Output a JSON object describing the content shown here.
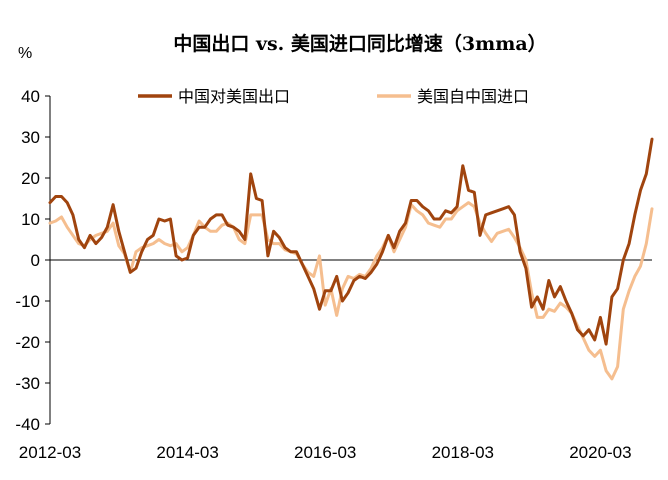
{
  "chart_data": {
    "type": "line",
    "title": "中国出口 vs. 美国进口同比增速（3mma）",
    "ylabel": "%",
    "xlabel": "",
    "ylim": [
      -40,
      40
    ],
    "yticks": [
      -40,
      -30,
      -20,
      -10,
      0,
      10,
      20,
      30,
      40
    ],
    "ytick_labels": [
      "-40",
      "-30",
      "-20",
      "-10",
      "0",
      "10",
      "20",
      "30",
      "40"
    ],
    "xticks": [
      "2012-03",
      "2014-03",
      "2016-03",
      "2018-03",
      "2020-03"
    ],
    "xtick_positions": [
      0,
      24,
      48,
      72,
      96
    ],
    "x_range": [
      0,
      105
    ],
    "legend_position": "top-center",
    "colors": {
      "china_exports": "#A0440E",
      "us_imports": "#F5BE8F",
      "axis": "#000000"
    },
    "series": [
      {
        "name": "中国对美国出口",
        "values": [
          14,
          15.5,
          15.5,
          14,
          11,
          5,
          3,
          6,
          4,
          5.5,
          8,
          13.5,
          7,
          2,
          -3,
          -2,
          2,
          5,
          6,
          10,
          9.5,
          10,
          1,
          0,
          0.5,
          6,
          8,
          8,
          10,
          11,
          11,
          8.5,
          8,
          7,
          5,
          21,
          15,
          14.5,
          1,
          7,
          5.5,
          3,
          2,
          2,
          -1,
          -4,
          -7,
          -12,
          -7.5,
          -7.5,
          -4,
          -10,
          -8,
          -5,
          -4,
          -4.5,
          -3,
          -1,
          2,
          6,
          3,
          7,
          9,
          14.5,
          14.5,
          13,
          12,
          10,
          10,
          12,
          11.5,
          13,
          23,
          17,
          16.5,
          6,
          11,
          11.5,
          12,
          12.5,
          13,
          11,
          2,
          -2,
          -11.5,
          -9,
          -12,
          -5,
          -9,
          -6.5,
          -10,
          -13,
          -17,
          -18.5,
          -17,
          -19.5,
          -14,
          -20.5,
          -9,
          -7,
          0,
          4,
          11,
          17,
          21,
          29.5
        ]
      },
      {
        "name": "美国自中国进口",
        "values": [
          9,
          9.5,
          10.5,
          8,
          6,
          4,
          3.5,
          5,
          6,
          6.5,
          7,
          9,
          3.5,
          1.5,
          -3,
          2,
          3,
          3.5,
          4,
          5,
          4,
          3.5,
          4,
          2,
          3,
          6,
          9.5,
          8,
          7,
          7,
          8.5,
          9,
          8,
          5,
          4,
          11,
          11,
          11,
          5,
          4,
          4,
          2.5,
          2,
          1.5,
          -1,
          -3,
          -4,
          1,
          -11,
          -7,
          -13.5,
          -7,
          -4,
          -4.5,
          -3.5,
          -4,
          -2,
          1,
          3,
          6,
          2,
          5,
          8,
          13.5,
          12,
          11,
          9,
          8.5,
          8,
          10,
          10,
          12,
          13,
          14,
          13,
          9,
          6.5,
          4.5,
          6.5,
          7,
          7.5,
          5.5,
          3,
          0,
          -8,
          -14,
          -14,
          -12,
          -12.5,
          -10.5,
          -11.5,
          -13,
          -16,
          -19,
          -22,
          -23.5,
          -22,
          -27,
          -29,
          -26,
          -12,
          -7.5,
          -4,
          -1.5,
          4,
          12.5
        ]
      }
    ]
  }
}
